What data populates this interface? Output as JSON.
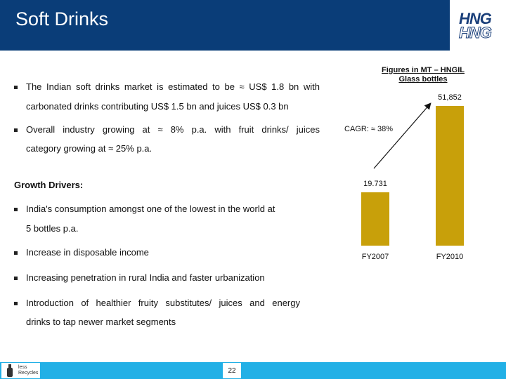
{
  "header": {
    "title": "Soft Drinks"
  },
  "logo": {
    "line1": "HNG",
    "line2": "HNG"
  },
  "bullets": {
    "b1_line1": "The Indian soft drinks market is estimated to be ≈ US$ 1.8 bn with",
    "b1_line2": "carbonated drinks contributing US$ 1.5 bn and juices US$ 0.3 bn",
    "b2_line1": "Overall industry growing at ≈ 8% p.a. with fruit drinks/ juices",
    "b2_line2": "category growing at ≈ 25% p.a.",
    "growth_heading": "Growth Drivers:",
    "g1_line1": "India's consumption amongst one of the lowest in the world at",
    "g1_line2": "5 bottles p.a.",
    "g2": "Increase in disposable income",
    "g3": "Increasing penetration in rural India and faster urbanization",
    "g4_line1": "Introduction of healthier fruity substitutes/ juices and energy",
    "g4_line2": "drinks to tap newer market segments"
  },
  "chart_data": {
    "type": "bar",
    "title": "Figures in MT – HNGIL Glass bottles",
    "categories": [
      "FY2007",
      "FY2010"
    ],
    "values": [
      19731,
      51852
    ],
    "value_labels": [
      "19.731",
      "51,852"
    ],
    "annotation": "CAGR: ≈ 38%",
    "ylim": [
      0,
      60000
    ],
    "bar_color": "#c8a00a"
  },
  "footer": {
    "page": "22",
    "recycle_text": "less Recycles"
  }
}
